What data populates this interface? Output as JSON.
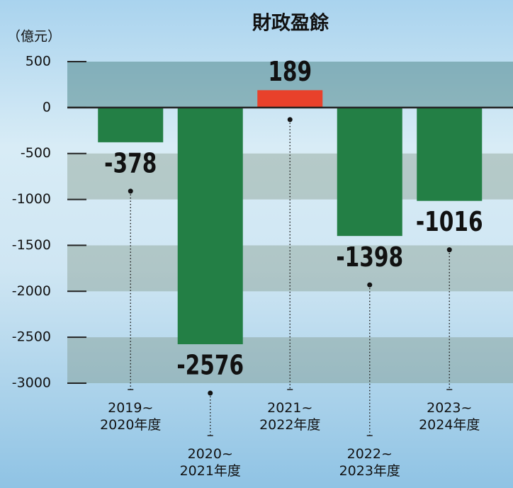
{
  "chart_data": {
    "type": "bar",
    "title": "財政盈餘",
    "y_label": "（億元）",
    "categories": [
      "2019~\n2020年度",
      "2020~\n2021年度",
      "2021~\n2022年度",
      "2022~\n2023年度",
      "2023~\n2024年度"
    ],
    "values": [
      -378,
      -2576,
      189,
      -1398,
      -1016
    ],
    "positive_color": "#e8412b",
    "negative_color": "#237f45",
    "ylim": [
      -3000,
      500
    ],
    "yticks": [
      500,
      0,
      -500,
      -1000,
      -1500,
      -2000,
      -2500,
      -3000
    ]
  }
}
